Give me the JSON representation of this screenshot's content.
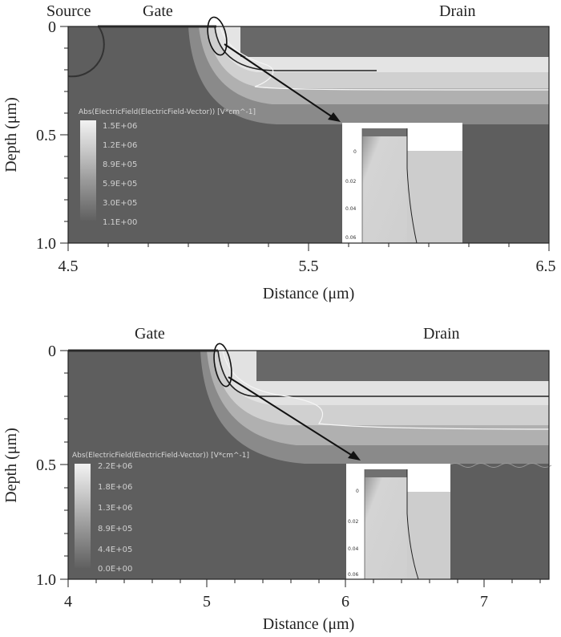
{
  "panels": [
    {
      "region_labels": [
        "Source",
        "Gate",
        "Drain"
      ],
      "y_axis": {
        "label": "Depth (μm)",
        "ticks": [
          "0",
          "0.5",
          "1.0"
        ]
      },
      "x_axis": {
        "label": "Distance (μm)",
        "ticks": [
          "4.5",
          "5.5",
          "6.5"
        ]
      },
      "legend": {
        "title": "Abs(ElectricField(ElectricField-Vector)) [V*cm^-1]",
        "values": [
          "1.5E+06",
          "1.2E+06",
          "8.9E+05",
          "5.9E+05",
          "3.0E+05",
          "1.1E+00"
        ]
      },
      "inset": {
        "ticks": [
          "0",
          "0.02",
          "0.04",
          "0.06"
        ]
      }
    },
    {
      "region_labels": [
        "Gate",
        "Drain"
      ],
      "y_axis": {
        "label": "Depth (μm)",
        "ticks": [
          "0",
          "0.5",
          "1.0"
        ]
      },
      "x_axis": {
        "label": "Distance (μm)",
        "ticks": [
          "4",
          "5",
          "6",
          "7"
        ]
      },
      "legend": {
        "title": "Abs(ElectricField(ElectricField-Vector)) [V*cm^-1]",
        "values": [
          "2.2E+06",
          "1.8E+06",
          "1.3E+06",
          "8.9E+05",
          "4.4E+05",
          "0.0E+00"
        ]
      },
      "inset": {
        "ticks": [
          "0",
          "0.02",
          "0.04",
          "0.06"
        ]
      }
    }
  ]
}
